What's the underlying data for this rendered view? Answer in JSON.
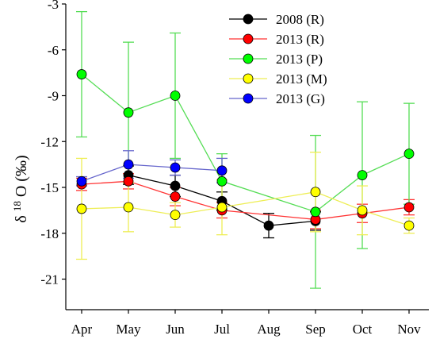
{
  "chart_data": {
    "type": "line",
    "categories": [
      "Apr",
      "May",
      "Jun",
      "Jul",
      "Aug",
      "Sep",
      "Oct",
      "Nov"
    ],
    "ylabel_prefix": "δ",
    "ylabel_sup": "18",
    "ylabel_suffix": "O (‰)",
    "ylim": [
      -23,
      -3
    ],
    "yticks": [
      -21,
      -18,
      -15,
      -12,
      -9,
      -6,
      -3
    ],
    "legend_position": "top-right",
    "series": [
      {
        "name": "2008 (R)",
        "color": "#000000",
        "line_color": "#000000",
        "values": [
          null,
          -14.2,
          -14.9,
          -15.9,
          -17.5,
          -17.2,
          null,
          null
        ],
        "errors": [
          null,
          0.6,
          0.7,
          0.6,
          0.8,
          0.6,
          null,
          null
        ]
      },
      {
        "name": "2013 (R)",
        "color": "#ff0000",
        "line_color": "#ff3333",
        "values": [
          -14.8,
          -14.6,
          -15.6,
          -16.5,
          null,
          -17.1,
          -16.7,
          -16.3
        ],
        "errors": [
          0.4,
          0.5,
          0.6,
          0.5,
          null,
          0.6,
          0.6,
          0.5
        ]
      },
      {
        "name": "2013 (P)",
        "color": "#00ff00",
        "line_color": "#55dd55",
        "values": [
          -7.6,
          -10.1,
          -9.0,
          -14.6,
          null,
          -16.6,
          -14.2,
          -12.8
        ],
        "errors": [
          4.1,
          4.6,
          4.1,
          1.8,
          null,
          5.0,
          4.8,
          3.3
        ]
      },
      {
        "name": "2013 (M)",
        "color": "#ffff00",
        "line_color": "#eeee55",
        "values": [
          -16.4,
          -16.3,
          -16.8,
          -16.3,
          null,
          -15.3,
          -16.5,
          -17.5
        ],
        "errors": [
          3.3,
          1.6,
          0.8,
          1.8,
          null,
          2.6,
          1.6,
          0.5
        ]
      },
      {
        "name": "2013 (G)",
        "color": "#0000ff",
        "line_color": "#6666cc",
        "values": [
          -14.6,
          -13.5,
          -13.7,
          -13.9,
          null,
          null,
          null,
          null
        ],
        "errors": [
          0.3,
          0.9,
          0.5,
          0.8,
          null,
          null,
          null,
          null
        ]
      }
    ]
  }
}
